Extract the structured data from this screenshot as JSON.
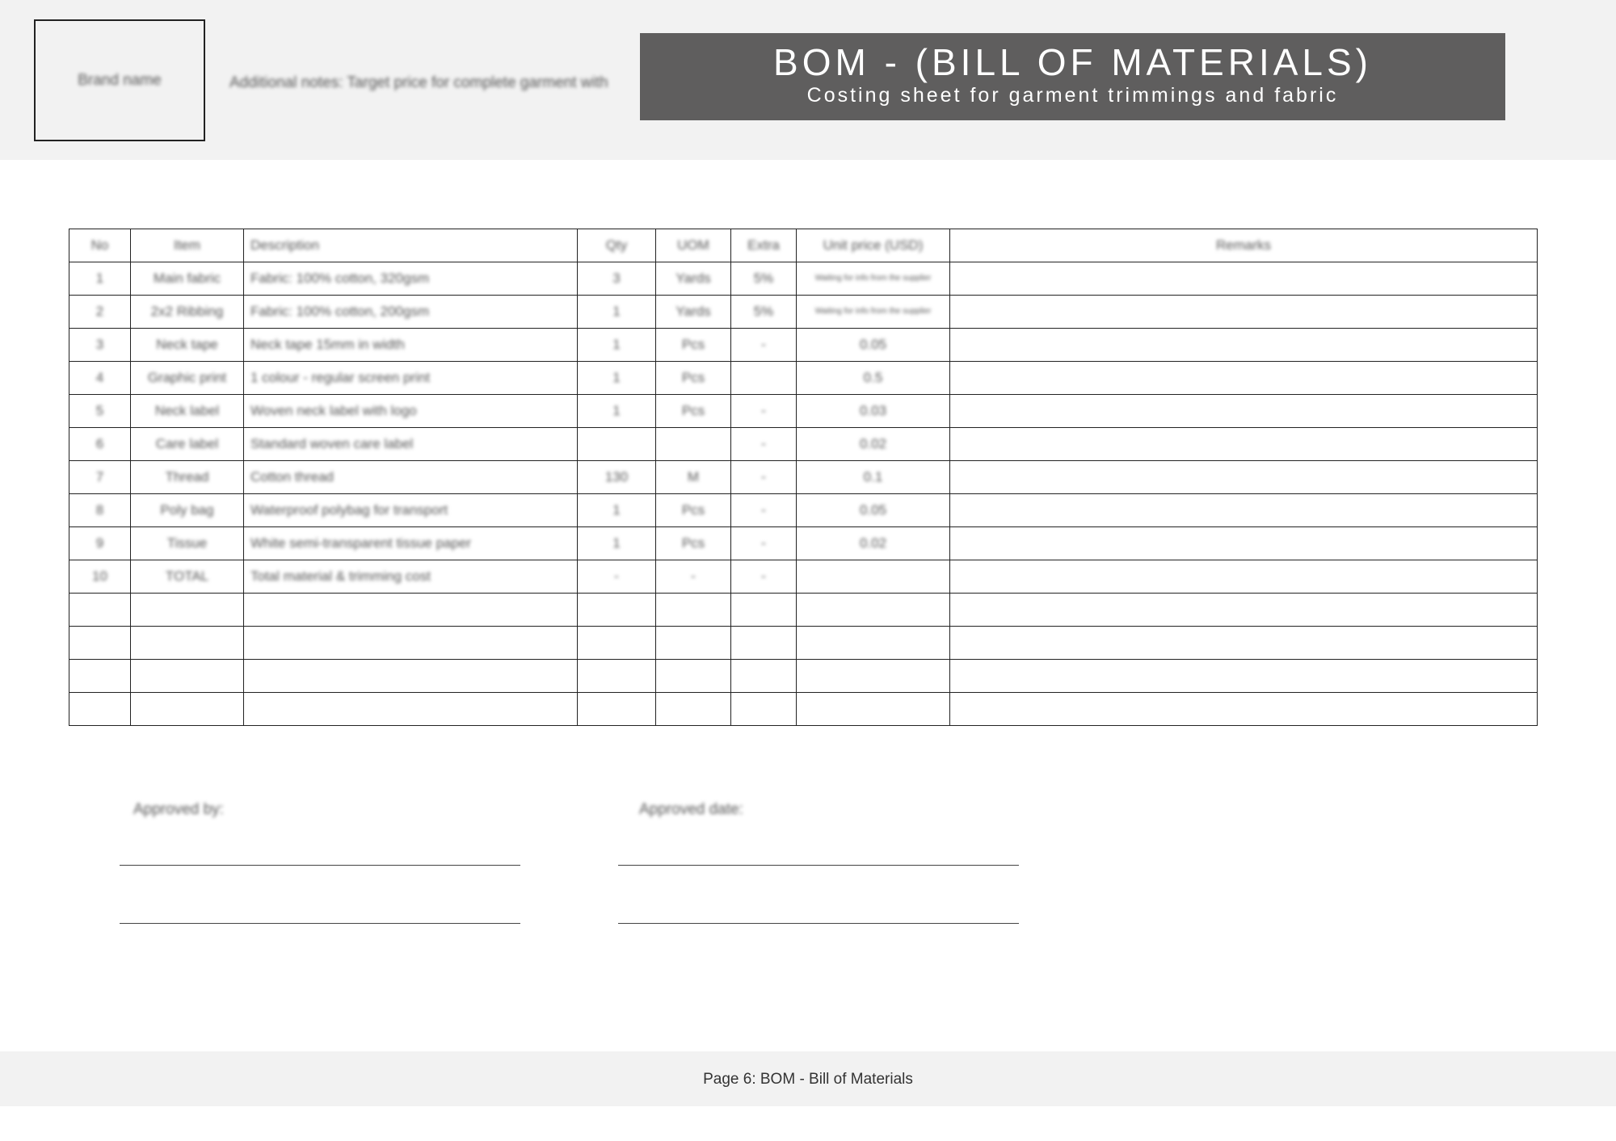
{
  "header": {
    "brand_name": "Brand name",
    "notes": "Additional notes: Target price for complete garment with",
    "title": "BOM - (BILL OF MATERIALS)",
    "subtitle": "Costing sheet for garment trimmings and fabric"
  },
  "table": {
    "columns": [
      "No",
      "Item",
      "Description",
      "Qty",
      "UOM",
      "Extra",
      "Unit price (USD)",
      "Remarks"
    ],
    "rows": [
      [
        "1",
        "Main fabric",
        "Fabric: 100% cotton, 320gsm",
        "3",
        "Yards",
        "5%",
        "Waiting for info from the supplier",
        ""
      ],
      [
        "2",
        "2x2 Ribbing",
        "Fabric: 100% cotton, 200gsm",
        "1",
        "Yards",
        "5%",
        "Waiting for info from the supplier",
        ""
      ],
      [
        "3",
        "Neck tape",
        "Neck tape 15mm in width",
        "1",
        "Pcs",
        "-",
        "0.05",
        ""
      ],
      [
        "4",
        "Graphic print",
        "1 colour - regular screen print",
        "1",
        "Pcs",
        "",
        "0.5",
        ""
      ],
      [
        "5",
        "Neck label",
        "Woven neck label with logo",
        "1",
        "Pcs",
        "-",
        "0.03",
        ""
      ],
      [
        "6",
        "Care label",
        "Standard woven care label",
        "",
        "",
        "-",
        "0.02",
        ""
      ],
      [
        "7",
        "Thread",
        "Cotton thread",
        "130",
        "M",
        "-",
        "0.1",
        ""
      ],
      [
        "8",
        "Poly bag",
        "Waterproof polybag for transport",
        "1",
        "Pcs",
        "-",
        "0.05",
        ""
      ],
      [
        "9",
        "Tissue",
        "White semi-transparent tissue paper",
        "1",
        "Pcs",
        "-",
        "0.02",
        ""
      ],
      [
        "10",
        "TOTAL",
        "Total material & trimming cost",
        "-",
        "-",
        "-",
        "",
        ""
      ],
      [
        "",
        "",
        "",
        "",
        "",
        "",
        "",
        ""
      ],
      [
        "",
        "",
        "",
        "",
        "",
        "",
        "",
        ""
      ],
      [
        "",
        "",
        "",
        "",
        "",
        "",
        "",
        ""
      ],
      [
        "",
        "",
        "",
        "",
        "",
        "",
        "",
        ""
      ]
    ]
  },
  "approval": {
    "approved_by": "Approved by:",
    "approved_date": "Approved date:"
  },
  "footer": {
    "page_label": "Page 6: BOM - Bill of Materials"
  },
  "colors": {
    "title_bg": "#5f5e5e",
    "band_bg": "#f2f2f2"
  }
}
